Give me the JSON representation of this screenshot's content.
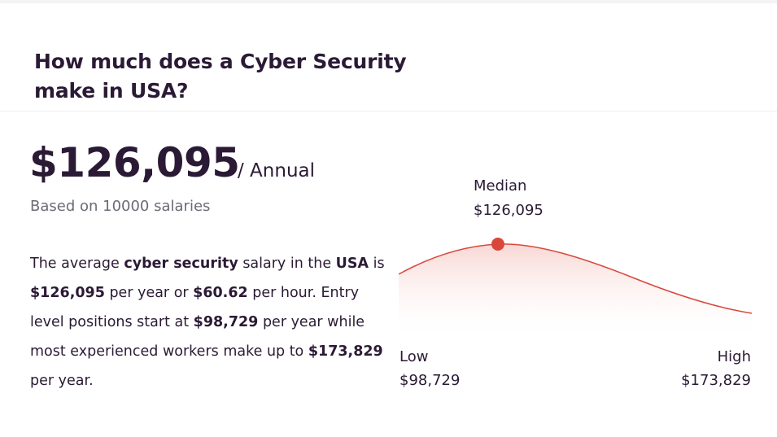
{
  "heading": {
    "line1": "How much does a Cyber Security",
    "line2": "make in USA?"
  },
  "summary": {
    "salary": "$126,095",
    "period": "/ Annual",
    "basis": "Based on 10000 salaries"
  },
  "description": {
    "p1": "The average ",
    "job": "cyber security",
    "p2": " salary in the ",
    "country": "USA",
    "p3": " is ",
    "annual": "$126,095",
    "p4": " per year or ",
    "hourly": "$60.62",
    "p5": " per hour. Entry level positions start at ",
    "entry": "$98,729",
    "p6": " per year while most experienced workers make up to ",
    "top": "$173,829",
    "p7": " per year."
  },
  "distribution": {
    "median_label": "Median",
    "median_value": "$126,095",
    "low_label": "Low",
    "low_value": "$98,729",
    "high_label": "High",
    "high_value": "$173,829",
    "curve_color": "#d9473a",
    "fill_color": "#f7d3cf"
  }
}
